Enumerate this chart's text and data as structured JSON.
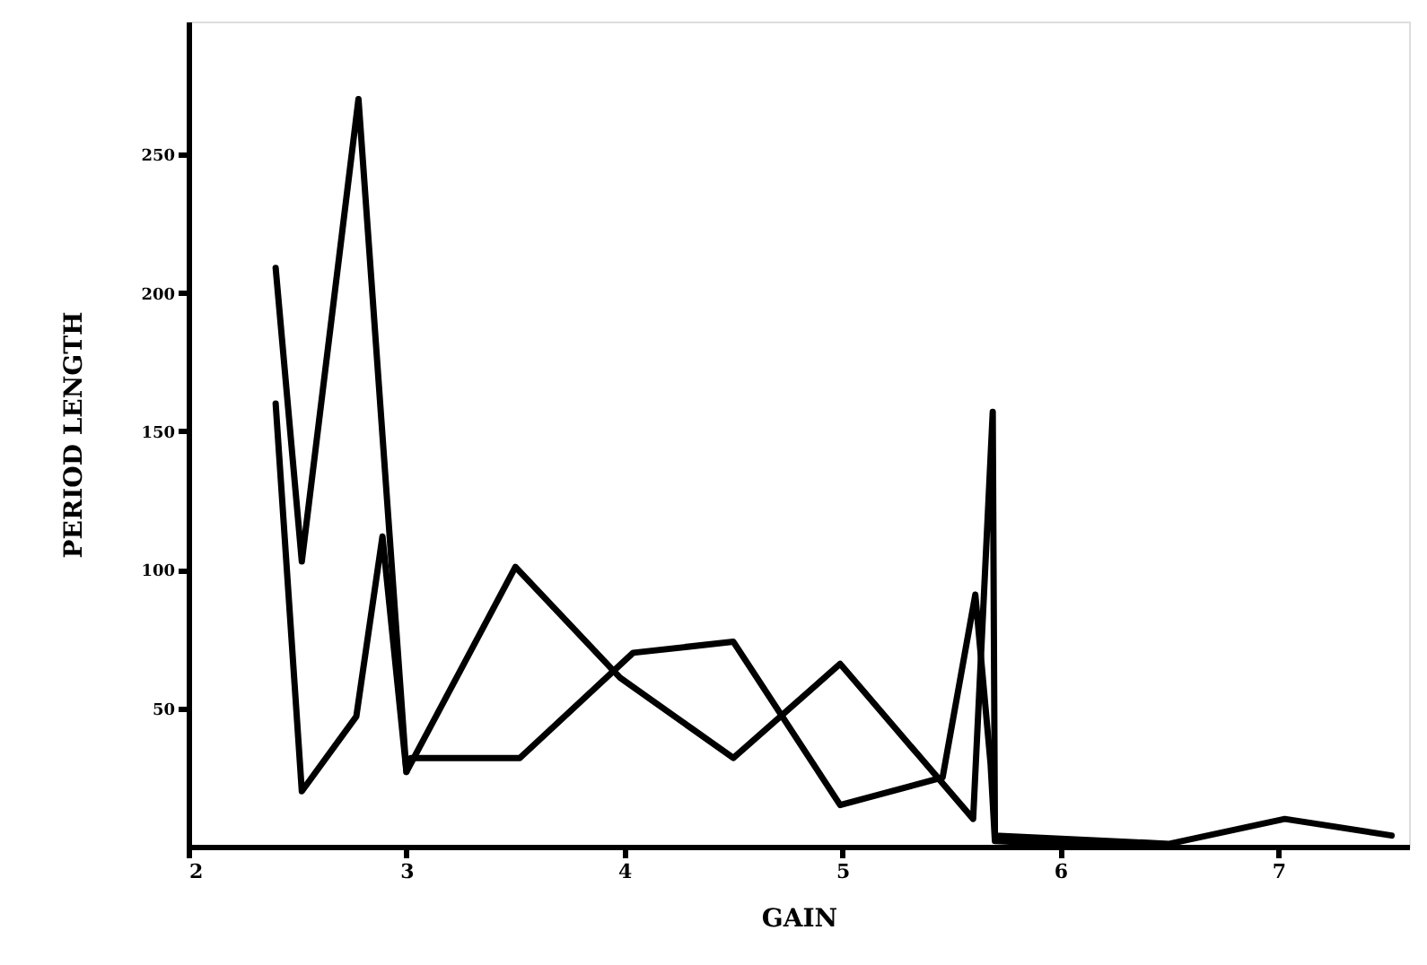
{
  "chart_data": {
    "type": "line",
    "xlabel": "GAIN",
    "ylabel": "PERIOD LENGTH",
    "xlim": [
      2,
      7.6
    ],
    "ylim": [
      0,
      298
    ],
    "xticks": [
      2,
      3,
      4,
      5,
      6,
      7
    ],
    "yticks": [
      50,
      100,
      150,
      200,
      250
    ],
    "grid": false,
    "marker": "none",
    "line_style": "solid",
    "series": [
      {
        "color": "#000000",
        "x": [
          2.4,
          2.52,
          2.78,
          3.0,
          3.5,
          3.98,
          4.5,
          4.99,
          5.6,
          5.69,
          5.7,
          6.5,
          7.03,
          7.52
        ],
        "values": [
          209,
          103,
          270,
          27,
          101,
          61,
          32,
          66,
          10,
          157,
          4,
          1,
          10,
          4
        ]
      },
      {
        "color": "#000000",
        "x": [
          2.4,
          2.52,
          2.77,
          2.89,
          3.0,
          3.02,
          3.52,
          4.04,
          4.5,
          4.99,
          5.46,
          5.61,
          5.68,
          5.7,
          6.0,
          6.5
        ],
        "values": [
          160,
          20,
          47,
          112,
          27,
          32,
          32,
          70,
          74,
          15,
          25,
          91,
          30,
          2,
          1,
          0
        ]
      }
    ]
  }
}
